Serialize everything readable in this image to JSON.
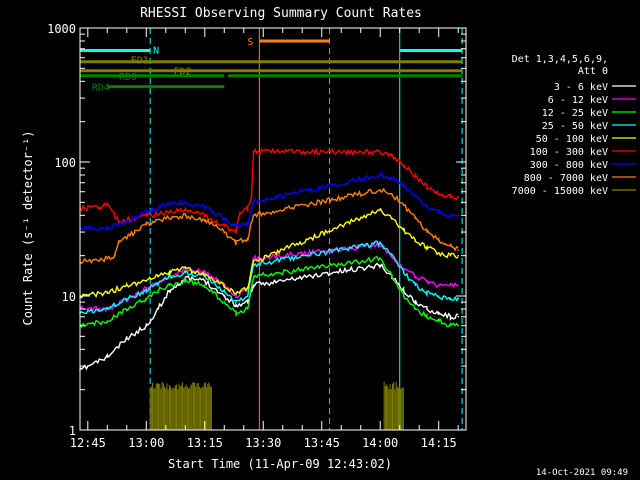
{
  "chart_data": {
    "type": "line",
    "title": "RHESSI Observing Summary Count Rates",
    "xlabel": "Start Time (11-Apr-09 12:43:02)",
    "ylabel": "Count Rate (s⁻¹ detector⁻¹)",
    "y_scale": "log",
    "ylim": [
      1,
      1000
    ],
    "xlim": [
      "12:43",
      "14:22"
    ],
    "grid": false,
    "legend_position": "right",
    "x_ticks": [
      "12:45",
      "13:00",
      "13:15",
      "13:30",
      "13:45",
      "14:00",
      "14:15"
    ],
    "y_ticks": [
      "1",
      "10",
      "100",
      "1000"
    ],
    "legend_header": [
      "Det 1,3,4,5,6,9,",
      "Att 0"
    ],
    "series": [
      {
        "name": "3 - 6 keV",
        "color": "#ffffff",
        "x": [
          "12:43",
          "12:50",
          "12:55",
          "13:00",
          "13:03",
          "13:06",
          "13:10",
          "13:15",
          "13:20",
          "13:23",
          "13:26",
          "13:27.5",
          "14:00",
          "14:03",
          "14:06",
          "14:09",
          "14:12",
          "14:15",
          "14:18",
          "14:20"
        ],
        "values": [
          2.8,
          3.5,
          4.8,
          6,
          8,
          11,
          13.5,
          13,
          10,
          8.5,
          9,
          12,
          17,
          14,
          11,
          9,
          8,
          7.5,
          7,
          7
        ]
      },
      {
        "name": "6 - 12 keV",
        "color": "#ff00ff",
        "x": [
          "12:43",
          "12:50",
          "12:52",
          "12:57",
          "13:00",
          "13:05",
          "13:10",
          "13:15",
          "13:20",
          "13:23",
          "13:26",
          "13:27.5",
          "14:00",
          "14:03",
          "14:06",
          "14:09",
          "14:12",
          "14:15",
          "14:18",
          "14:20"
        ],
        "values": [
          8,
          8,
          8.5,
          10,
          11.5,
          13.5,
          16,
          15,
          12,
          10,
          11,
          19,
          24,
          20,
          16,
          14,
          13,
          12,
          12,
          12
        ]
      },
      {
        "name": "12 - 25 keV",
        "color": "#00ff00",
        "x": [
          "12:43",
          "12:50",
          "12:55",
          "13:00",
          "13:03",
          "13:06",
          "13:10",
          "13:15",
          "13:20",
          "13:23",
          "13:26",
          "13:27.5",
          "14:00",
          "14:03",
          "14:06",
          "14:09",
          "14:12",
          "14:15",
          "14:18",
          "14:20"
        ],
        "values": [
          6,
          6.5,
          8,
          9.5,
          11,
          12,
          13,
          12,
          9,
          7.5,
          8,
          14,
          19,
          14,
          10,
          8,
          7,
          6.5,
          6,
          6
        ]
      },
      {
        "name": "25 - 50 keV",
        "color": "#00ffff",
        "x": [
          "12:43",
          "12:50",
          "12:55",
          "13:00",
          "13:03",
          "13:06",
          "13:10",
          "13:15",
          "13:20",
          "13:23",
          "13:26",
          "13:27.5",
          "14:00",
          "14:03",
          "14:06",
          "14:09",
          "14:12",
          "14:15",
          "14:18",
          "14:20"
        ],
        "values": [
          7.5,
          8,
          9.5,
          11,
          12.5,
          14,
          15,
          14,
          11,
          9,
          10,
          17,
          25,
          20,
          15,
          12,
          10.5,
          10,
          9.5,
          9.5
        ]
      },
      {
        "name": "50 - 100 keV",
        "color": "#ffff00",
        "x": [
          "12:43",
          "12:50",
          "12:55",
          "13:00",
          "13:03",
          "13:06",
          "13:10",
          "13:15",
          "13:20",
          "13:23",
          "13:26",
          "13:27.5",
          "14:00",
          "14:03",
          "14:06",
          "14:09",
          "14:12",
          "14:15",
          "14:18",
          "14:20"
        ],
        "values": [
          10,
          10.5,
          12,
          13,
          14,
          15,
          16,
          14.5,
          12,
          10.5,
          11.5,
          18,
          44,
          38,
          31,
          26,
          23,
          21,
          20,
          20
        ]
      },
      {
        "name": "100 - 300 keV",
        "color": "#ff0000",
        "x": [
          "12:43",
          "12:48",
          "12:50",
          "12:53",
          "12:57",
          "13:00",
          "13:05",
          "13:10",
          "13:15",
          "13:20",
          "13:23",
          "13:24",
          "13:26",
          "13:27",
          "13:27.5",
          "14:00",
          "14:03",
          "14:06",
          "14:09",
          "14:12",
          "14:15",
          "14:18",
          "14:20"
        ],
        "values": [
          45,
          46,
          48,
          36,
          38,
          40,
          42,
          44,
          40,
          33,
          30,
          42,
          45,
          55,
          120,
          118,
          110,
          95,
          78,
          65,
          58,
          55,
          55
        ]
      },
      {
        "name": "300 - 800 keV",
        "color": "#0000ff",
        "x": [
          "12:43",
          "12:50",
          "12:53",
          "12:57",
          "13:00",
          "13:05",
          "13:10",
          "13:15",
          "13:20",
          "13:23",
          "13:26",
          "13:27.5",
          "14:00",
          "14:03",
          "14:06",
          "14:09",
          "14:12",
          "14:15",
          "14:18",
          "14:20"
        ],
        "values": [
          32,
          32,
          34,
          38,
          42,
          48,
          50,
          46,
          38,
          33,
          35,
          50,
          80,
          75,
          68,
          55,
          47,
          42,
          40,
          40
        ]
      },
      {
        "name": "800 - 7000 keV",
        "color": "#ff8000",
        "x": [
          "12:43",
          "12:50",
          "12:52",
          "12:53",
          "12:57",
          "13:00",
          "13:05",
          "13:10",
          "13:15",
          "13:20",
          "13:23",
          "13:26",
          "13:27.5",
          "14:00",
          "14:03",
          "14:06",
          "14:09",
          "14:12",
          "14:15",
          "14:18",
          "14:20"
        ],
        "values": [
          18,
          19,
          20,
          25,
          30,
          34,
          38,
          40,
          37,
          30,
          25,
          27,
          40,
          62,
          57,
          48,
          38,
          30,
          26,
          24,
          22
        ]
      },
      {
        "name": "7000 - 15000 keV",
        "color": "#808000",
        "x": [
          "13:01",
          "13:17",
          "14:01",
          "14:06"
        ],
        "values": [
          2.3,
          2.3,
          2.3,
          2.3
        ]
      }
    ],
    "state_bars": [
      {
        "label": "N",
        "color": "#00ffff",
        "y": 680,
        "segments": [
          [
            "12:43",
            "13:01"
          ],
          [
            "14:05",
            "14:21"
          ]
        ]
      },
      {
        "label": "S",
        "color": "#ff8000",
        "y": 800,
        "segments": [
          [
            "13:29",
            "13:47"
          ]
        ]
      },
      {
        "label": "FD1",
        "color": "#808000",
        "y": 560,
        "segments": [
          [
            "12:43",
            "14:21"
          ]
        ]
      },
      {
        "label": "FD2",
        "color": "#808000",
        "y": 480,
        "segments": [
          [
            "12:43",
            "14:21"
          ]
        ]
      },
      {
        "label": "RD0",
        "color": "#008000",
        "y": 440,
        "segments": [
          [
            "12:43",
            "13:20"
          ],
          [
            "13:21",
            "14:21"
          ]
        ]
      },
      {
        "label": "RD4",
        "color": "#008000",
        "y": 365,
        "segments": [
          [
            "12:50",
            "13:20"
          ]
        ]
      }
    ],
    "vertical_markers": [
      {
        "x": "12:43",
        "color": "#00ffff",
        "style": "solid"
      },
      {
        "x": "13:01",
        "color": "#00ffff",
        "style": "dashed"
      },
      {
        "x": "13:29",
        "color": "#ff8000",
        "style": "solid"
      },
      {
        "x": "13:47",
        "color": "#ff8000",
        "style": "dashed"
      },
      {
        "x": "14:05",
        "color": "#00ffff",
        "style": "solid"
      },
      {
        "x": "14:21",
        "color": "#00ffff",
        "style": "dashed"
      }
    ]
  },
  "footer": {
    "timestamp": "14-Oct-2021 09:49"
  }
}
